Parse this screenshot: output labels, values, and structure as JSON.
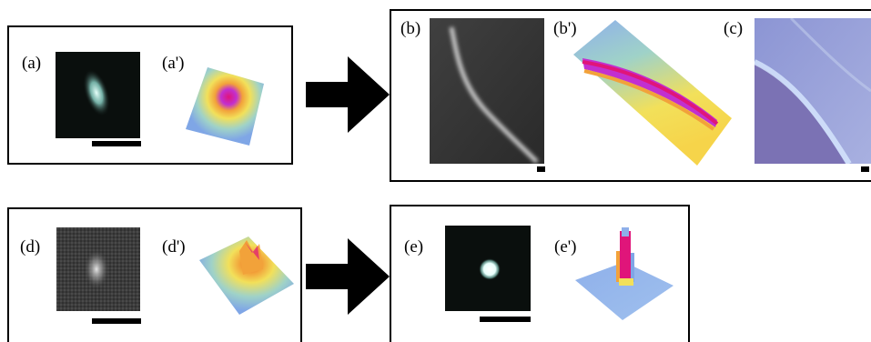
{
  "panels": {
    "a": "(a)",
    "a_prime": "(a')",
    "b": "(b)",
    "b_prime": "(b')",
    "c": "(c)",
    "d": "(d)",
    "d_prime": "(d')",
    "e": "(e)",
    "e_prime": "(e')"
  },
  "colors": {
    "frame": "#000000",
    "fluor_dark": "#0a0f0d",
    "fluor_glow": "#bfeee6",
    "surface_low": "#7fa6e6",
    "surface_mid": "#f2e05a",
    "surface_high": "#e0157a",
    "photo": "#9aa3d8"
  },
  "icons": [
    "right-arrow-icon",
    "right-arrow-icon"
  ]
}
